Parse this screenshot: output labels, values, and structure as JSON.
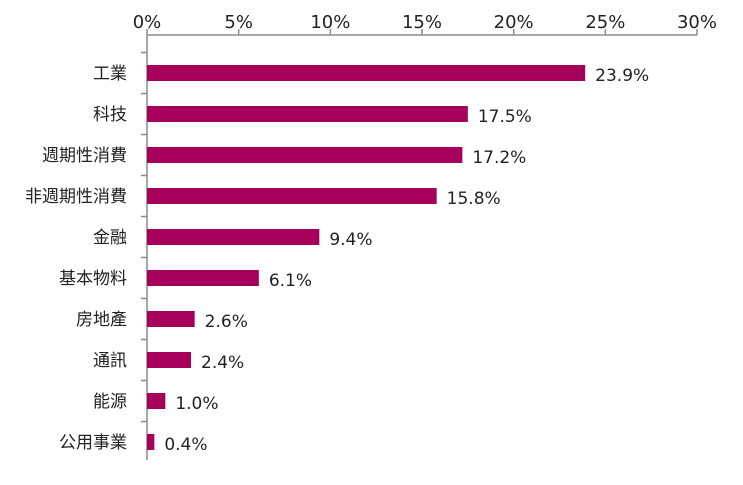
{
  "chart_data": {
    "type": "bar",
    "orientation": "horizontal",
    "categories": [
      "工業",
      "科技",
      "週期性消費",
      "非週期性消費",
      "金融",
      "基本物料",
      "房地產",
      "通訊",
      "能源",
      "公用事業"
    ],
    "values": [
      23.9,
      17.5,
      17.2,
      15.8,
      9.4,
      6.1,
      2.6,
      2.4,
      1.0,
      0.4
    ],
    "value_labels": [
      "23.9%",
      "17.5%",
      "17.2%",
      "15.8%",
      "9.4%",
      "6.1%",
      "2.6%",
      "2.4%",
      "1.0%",
      "0.4%"
    ],
    "x_axis_position": "top",
    "xlim": [
      0,
      30
    ],
    "xticks": [
      0,
      5,
      10,
      15,
      20,
      25,
      30
    ],
    "xtick_labels": [
      "0%",
      "5%",
      "10%",
      "15%",
      "20%",
      "25%",
      "30%"
    ],
    "bar_color": "#a6005a",
    "grid": false,
    "legend": "none"
  }
}
